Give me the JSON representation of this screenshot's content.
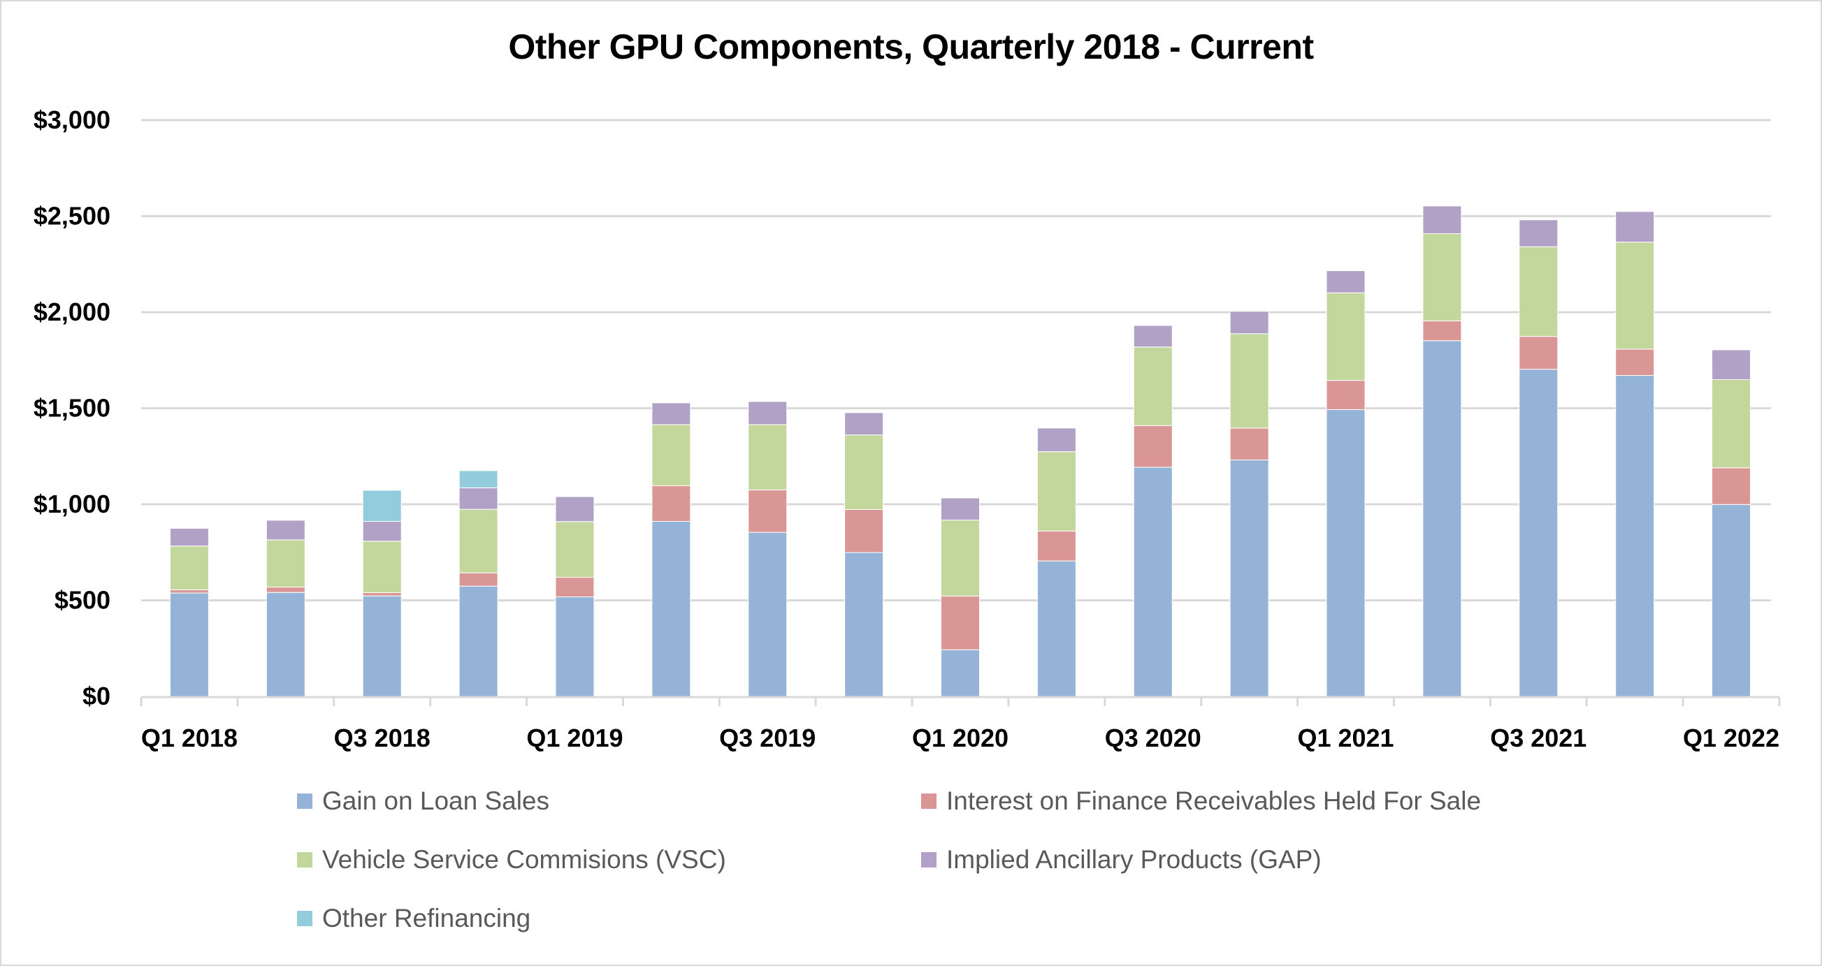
{
  "chart_data": {
    "type": "bar",
    "stacked": true,
    "title": "Other GPU Components, Quarterly 2018 - Current",
    "xlabel": "",
    "ylabel": "",
    "ylim": [
      0,
      3000
    ],
    "yticks": [
      0,
      500,
      1000,
      1500,
      2000,
      2500,
      3000
    ],
    "ytick_labels": [
      "$0",
      "$500",
      "$1,000",
      "$1,500",
      "$2,000",
      "$2,500",
      "$3,000"
    ],
    "grid": true,
    "legend_position": "bottom",
    "categories": [
      "Q1 2018",
      "Q2 2018",
      "Q3 2018",
      "Q4 2018",
      "Q1 2019",
      "Q2 2019",
      "Q3 2019",
      "Q4 2019",
      "Q1 2020",
      "Q2 2020",
      "Q3 2020",
      "Q4 2020",
      "Q1 2021",
      "Q2 2021",
      "Q3 2021",
      "Q4 2021",
      "Q1 2022"
    ],
    "xtick_labels": [
      "Q1 2018",
      "",
      "Q3 2018",
      "",
      "Q1 2019",
      "",
      "Q3 2019",
      "",
      "Q1 2020",
      "",
      "Q3 2020",
      "",
      "Q1 2021",
      "",
      "Q3 2021",
      "",
      "Q1 2022"
    ],
    "series": [
      {
        "name": "Gain on Loan Sales",
        "color": "#95B3D7",
        "values": [
          538,
          541,
          523,
          574,
          518,
          911,
          854,
          749,
          243,
          705,
          1193,
          1231,
          1493,
          1852,
          1703,
          1671,
          999
        ]
      },
      {
        "name": "Interest on Finance Receivables Held For Sale",
        "color": "#D99694",
        "values": [
          17,
          28,
          17,
          69,
          102,
          186,
          221,
          224,
          279,
          156,
          217,
          166,
          152,
          103,
          171,
          137,
          191
        ]
      },
      {
        "name": "Vehicle Service Commisions (VSC)",
        "color": "#C3D69B",
        "values": [
          228,
          246,
          268,
          331,
          290,
          318,
          340,
          388,
          396,
          413,
          409,
          491,
          456,
          454,
          467,
          557,
          459
        ]
      },
      {
        "name": "Implied Ancillary Products (GAP)",
        "color": "#B2A1C7",
        "values": [
          92,
          102,
          103,
          112,
          130,
          113,
          120,
          116,
          115,
          123,
          112,
          117,
          115,
          144,
          140,
          159,
          155
        ]
      },
      {
        "name": "Other Refinancing",
        "color": "#93CDDD",
        "values": [
          0,
          0,
          162,
          89,
          0,
          0,
          0,
          0,
          0,
          0,
          0,
          0,
          0,
          0,
          0,
          0,
          0
        ]
      }
    ]
  },
  "colors": {
    "gridline": "#D9D9D9",
    "axis": "#D9D9D9",
    "legend_text": "#595959"
  }
}
